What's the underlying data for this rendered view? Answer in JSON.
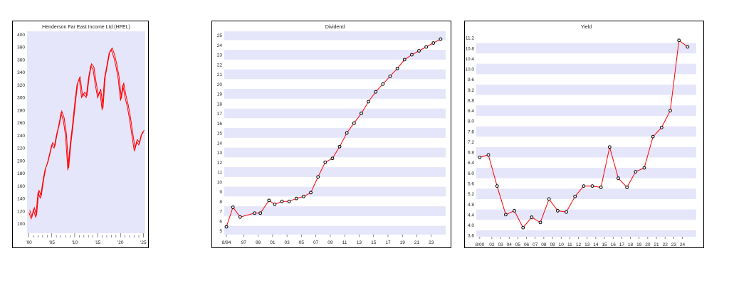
{
  "chart_data": [
    {
      "type": "line",
      "title": "Henderson Far East Income Ltd (HFEL)",
      "xlabel": "",
      "ylabel": "",
      "x_ticks": [
        "'00",
        "'05",
        "'10",
        "'15",
        "'20",
        "'25"
      ],
      "x_tick_years": [
        2000,
        2005,
        2010,
        2015,
        2020,
        2025
      ],
      "xlim": [
        1999.6,
        2025.4
      ],
      "y_ticks": [
        "100",
        "120",
        "140",
        "160",
        "180",
        "200",
        "220",
        "240",
        "260",
        "280",
        "300",
        "320",
        "340",
        "360",
        "380",
        "400"
      ],
      "ylim": [
        85,
        405
      ],
      "background": "#e6e6fa",
      "colors": {
        "line": "#ff0000"
      },
      "series": [
        {
          "x": [
            2000.0,
            2000.5,
            2001.0,
            2001.5,
            2002.0,
            2002.5,
            2003.0,
            2003.5,
            2004.0,
            2004.5,
            2005.0,
            2005.5,
            2006.0,
            2006.5,
            2007.0,
            2007.5,
            2008.0,
            2008.5,
            2009.0,
            2009.5,
            2010.0,
            2010.5,
            2011.0,
            2011.5,
            2012.0,
            2012.5,
            2013.0,
            2013.5,
            2014.0,
            2014.5,
            2015.0,
            2015.5,
            2016.0,
            2016.5,
            2017.0,
            2017.5,
            2018.0,
            2018.5,
            2019.0,
            2019.5,
            2020.0,
            2020.5,
            2021.0,
            2021.5,
            2022.0,
            2022.5,
            2023.0,
            2023.5,
            2024.0,
            2024.5,
            2025.0
          ],
          "y": [
            118,
            108,
            122,
            110,
            150,
            140,
            165,
            185,
            195,
            210,
            225,
            220,
            240,
            255,
            275,
            265,
            240,
            185,
            225,
            255,
            290,
            320,
            330,
            300,
            305,
            300,
            330,
            350,
            345,
            320,
            300,
            310,
            280,
            330,
            350,
            370,
            375,
            365,
            350,
            330,
            295,
            320,
            300,
            285,
            265,
            240,
            215,
            230,
            225,
            240,
            245
          ]
        }
      ]
    },
    {
      "type": "line",
      "title": "Dividend",
      "xlabel": "",
      "ylabel": "",
      "x_ticks": [
        "8/94",
        "97",
        "99",
        "01",
        "03",
        "05",
        "07",
        "09",
        "11",
        "13",
        "15",
        "17",
        "19",
        "21",
        "23"
      ],
      "x_tick_years": [
        1994.6,
        1997,
        1999,
        2001,
        2003,
        2005,
        2007,
        2009,
        2011,
        2013,
        2015,
        2017,
        2019,
        2021,
        2023
      ],
      "xlim": [
        1994.3,
        2025.0
      ],
      "y_ticks": [
        "5",
        "6",
        "7",
        "8",
        "9",
        "10",
        "11",
        "12",
        "13",
        "14",
        "15",
        "16",
        "17",
        "18",
        "19",
        "20",
        "21",
        "22",
        "23",
        "24",
        "25"
      ],
      "ylim": [
        4.6,
        25.4
      ],
      "background": "#e6e6fa",
      "colors": {
        "line": "#ff0000",
        "marker": "#000000"
      },
      "series": [
        {
          "x": [
            1994.6,
            1995.5,
            1996.5,
            1998.5,
            1999.3,
            2000.5,
            2001.3,
            2002.3,
            2003.3,
            2004.3,
            2005.3,
            2006.3,
            2007.3,
            2008.3,
            2009.3,
            2010.3,
            2011.3,
            2012.3,
            2013.3,
            2014.3,
            2015.3,
            2016.3,
            2017.3,
            2018.3,
            2019.3,
            2020.3,
            2021.3,
            2022.3,
            2023.3,
            2024.3
          ],
          "y": [
            5.4,
            7.4,
            6.4,
            6.8,
            6.8,
            8.1,
            7.7,
            8.0,
            8.0,
            8.3,
            8.5,
            8.9,
            10.5,
            12.0,
            12.4,
            13.6,
            15.0,
            16.0,
            17.0,
            18.2,
            19.2,
            20.0,
            20.8,
            21.6,
            22.5,
            23.0,
            23.4,
            23.8,
            24.2,
            24.6
          ]
        }
      ]
    },
    {
      "type": "line",
      "title": "Yield",
      "xlabel": "",
      "ylabel": "",
      "x_ticks": [
        "8/00",
        "02",
        "03",
        "04",
        "05",
        "06",
        "07",
        "08",
        "09",
        "10",
        "11",
        "12",
        "13",
        "14",
        "15",
        "16",
        "17",
        "18",
        "19",
        "20",
        "21",
        "22",
        "23",
        "24"
      ],
      "x_tick_years": [
        2000.6,
        2002,
        2003,
        2004,
        2005,
        2006,
        2007,
        2008,
        2009,
        2010,
        2011,
        2012,
        2013,
        2014,
        2015,
        2016,
        2017,
        2018,
        2019,
        2020,
        2021,
        2022,
        2023,
        2024
      ],
      "xlim": [
        2000.2,
        2025.6
      ],
      "y_ticks": [
        "3.6",
        "4.0",
        "4.4",
        "4.8",
        "5.2",
        "5.6",
        "6.0",
        "6.4",
        "6.8",
        "7.2",
        "7.6",
        "8.0",
        "8.4",
        "8.8",
        "9.2",
        "9.6",
        "10.0",
        "10.4",
        "10.8",
        "11.2"
      ],
      "ylim": [
        3.55,
        11.45
      ],
      "background": "#e6e6fa",
      "colors": {
        "line": "#ff0000",
        "marker": "#000000"
      },
      "series": [
        {
          "x": [
            2000.6,
            2001.6,
            2002.6,
            2003.6,
            2004.6,
            2005.6,
            2006.6,
            2007.6,
            2008.6,
            2009.6,
            2010.6,
            2011.6,
            2012.6,
            2013.6,
            2014.6,
            2015.6,
            2016.6,
            2017.6,
            2018.6,
            2019.6,
            2020.6,
            2021.6,
            2022.6,
            2023.6,
            2024.6
          ],
          "y": [
            6.6,
            6.7,
            5.5,
            4.4,
            4.55,
            3.9,
            4.3,
            4.1,
            5.0,
            4.55,
            4.5,
            5.1,
            5.5,
            5.5,
            5.45,
            7.0,
            5.8,
            5.45,
            6.05,
            6.2,
            7.4,
            7.75,
            8.4,
            11.1,
            10.85
          ]
        }
      ]
    }
  ]
}
